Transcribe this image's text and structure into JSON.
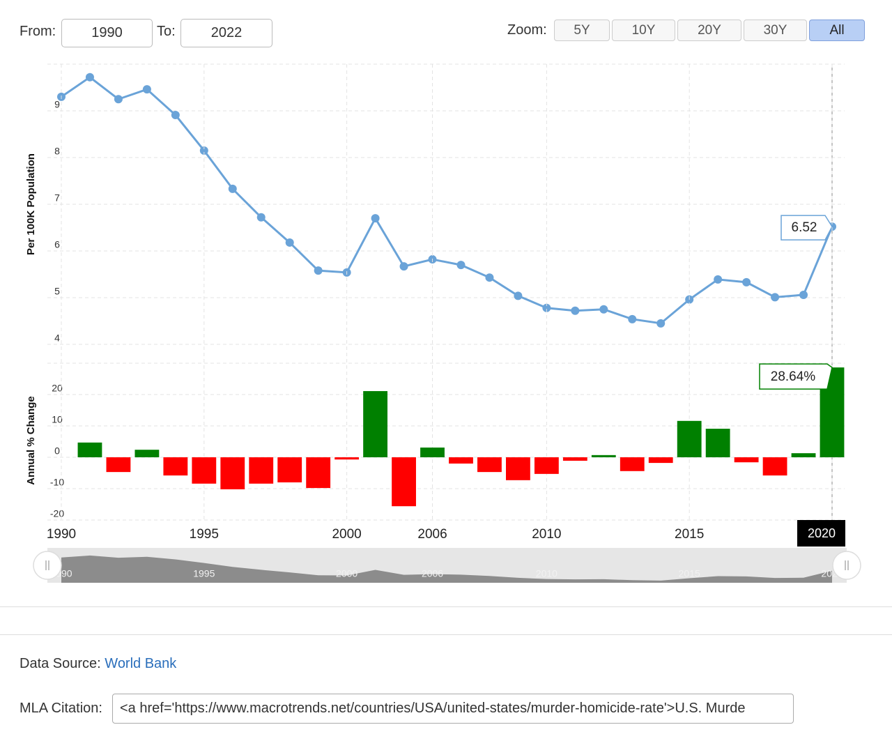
{
  "controls": {
    "from_label": "From:",
    "from_value": "1990",
    "to_label": "To:",
    "to_value": "2022",
    "zoom_label": "Zoom:",
    "zoom_buttons": [
      {
        "label": "5Y"
      },
      {
        "label": "10Y"
      },
      {
        "label": "20Y"
      },
      {
        "label": "30Y"
      },
      {
        "label": "All",
        "active": true
      }
    ]
  },
  "chart_data": [
    {
      "type": "line",
      "y_label": "Per 100K Population",
      "color": "#6aa3d8",
      "ylim": [
        4,
        10
      ],
      "yticks": [
        4,
        5,
        6,
        7,
        8,
        9
      ],
      "grid": true,
      "values": [
        9.3,
        9.72,
        9.25,
        9.46,
        8.91,
        8.15,
        7.33,
        6.72,
        6.18,
        5.58,
        5.54,
        6.7,
        5.67,
        5.82,
        5.7,
        5.43,
        5.04,
        4.78,
        4.72,
        4.75,
        4.54,
        4.45,
        4.96,
        5.39,
        5.33,
        5.01,
        5.06,
        6.52
      ]
    },
    {
      "type": "bar",
      "y_label": "Annual % Change",
      "positive_color": "#008000",
      "negative_color": "#ff0000",
      "ylim": [
        -20,
        30
      ],
      "yticks": [
        -20,
        -10,
        0,
        10,
        20
      ],
      "grid": true,
      "categories": [
        "1990",
        null,
        null,
        null,
        null,
        "1995",
        null,
        null,
        null,
        null,
        "2000",
        null,
        null,
        "2006",
        null,
        null,
        null,
        "2010",
        null,
        null,
        null,
        null,
        "2015",
        null,
        null,
        null,
        null,
        "2020"
      ],
      "values": [
        null,
        4.7,
        -4.7,
        2.4,
        -5.8,
        -8.4,
        -10.2,
        -8.4,
        -8.0,
        -9.8,
        -0.7,
        21.1,
        -15.6,
        3.1,
        -2.0,
        -4.7,
        -7.3,
        -5.3,
        -1.1,
        0.7,
        -4.4,
        -1.8,
        11.6,
        9.1,
        -1.6,
        -5.8,
        1.3,
        28.64
      ],
      "value_labels": [
        null,
        null,
        null,
        null,
        null,
        null,
        null,
        null,
        null,
        null,
        null,
        null,
        null,
        null,
        null,
        null,
        null,
        null,
        null,
        null,
        null,
        null,
        null,
        null,
        null,
        null,
        null,
        "28.64%"
      ]
    }
  ],
  "source": {
    "label": "Data Source:",
    "link": "World Bank"
  },
  "citation": {
    "label": "MLA Citation:",
    "value": "<a href='https://www.macrotrends.net/countries/USA/united-states/murder-homicide-rate'>U.S. Murde"
  }
}
